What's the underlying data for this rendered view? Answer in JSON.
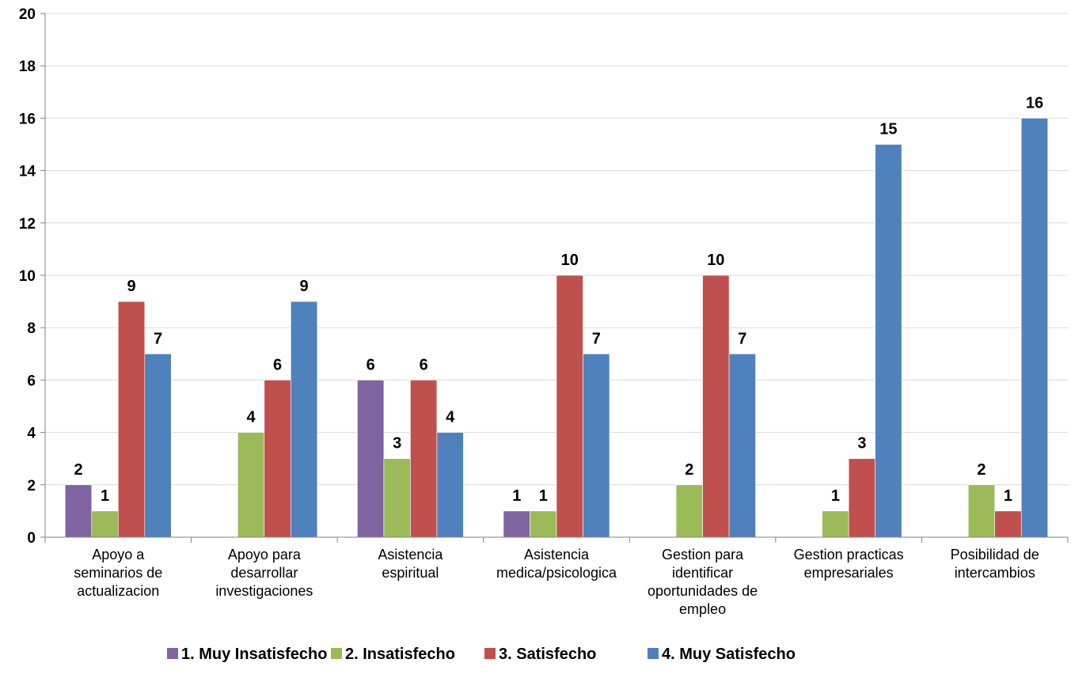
{
  "chart_data": {
    "type": "bar",
    "title": "",
    "xlabel": "",
    "ylabel": "",
    "ylim": [
      0,
      20
    ],
    "yticks": [
      "0",
      "2",
      "4",
      "6",
      "8",
      "10",
      "12",
      "14",
      "16",
      "18",
      "20"
    ],
    "grid": "horizontal",
    "legend_position": "bottom",
    "categories": [
      [
        "Apoyo a",
        "seminarios de",
        "actualizacion"
      ],
      [
        "Apoyo para",
        "desarrollar",
        "investigaciones"
      ],
      [
        "Asistencia",
        "espiritual"
      ],
      [
        "Asistencia",
        "medica/psicologica"
      ],
      [
        "Gestion para",
        "identificar",
        "oportunidades de",
        "empleo"
      ],
      [
        "Gestion practicas",
        "empresariales"
      ],
      [
        "Posibilidad de",
        "intercambios"
      ]
    ],
    "series": [
      {
        "name": "1. Muy Insatisfecho",
        "color": "#8064A2",
        "values": [
          2,
          null,
          6,
          1,
          null,
          null,
          null
        ]
      },
      {
        "name": "2. Insatisfecho",
        "color": "#9BBB59",
        "values": [
          1,
          4,
          3,
          1,
          2,
          1,
          2
        ]
      },
      {
        "name": "3. Satisfecho",
        "color": "#C0504D",
        "values": [
          9,
          6,
          6,
          10,
          10,
          3,
          1
        ]
      },
      {
        "name": "4. Muy Satisfecho",
        "color": "#4F81BD",
        "values": [
          7,
          9,
          4,
          7,
          7,
          15,
          16
        ]
      }
    ]
  }
}
